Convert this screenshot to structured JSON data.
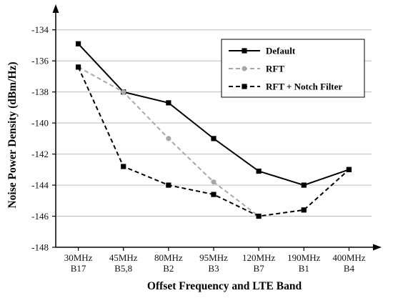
{
  "chart_data": {
    "type": "line",
    "title": "",
    "xlabel": "Offset Frequency and LTE Band",
    "ylabel": "Noise Power Density (dBm/Hz)",
    "categories": [
      [
        "30MHz",
        "B17"
      ],
      [
        "45MHz",
        "B5,8"
      ],
      [
        "80MHz",
        "B2"
      ],
      [
        "95MHz",
        "B3"
      ],
      [
        "120MHz",
        "B7"
      ],
      [
        "190MHz",
        "B1"
      ],
      [
        "400MHz",
        "B4"
      ]
    ],
    "ylim": [
      -148,
      -133
    ],
    "yticks": [
      -148,
      -146,
      -144,
      -142,
      -140,
      -138,
      -136,
      -134
    ],
    "grid": true,
    "legend_position": "top-right",
    "series": [
      {
        "name": "Default",
        "values": [
          -134.9,
          -138.0,
          -138.7,
          -141.0,
          -143.1,
          -144.0,
          -143.0
        ],
        "color": "#000000",
        "dash": "solid",
        "marker": "square"
      },
      {
        "name": "RFT",
        "values": [
          -136.4,
          -138.0,
          -141.0,
          -143.8,
          -146.0,
          null,
          null
        ],
        "color": "#a8a8a8",
        "dash": "dashed",
        "marker": "circle"
      },
      {
        "name": "RFT + Notch Filter",
        "values": [
          -136.4,
          -142.8,
          -144.0,
          -144.6,
          -146.0,
          -145.6,
          -143.0
        ],
        "color": "#000000",
        "dash": "dashed",
        "marker": "square"
      }
    ]
  }
}
